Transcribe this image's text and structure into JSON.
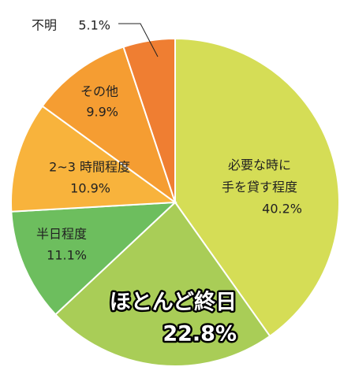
{
  "chart_data": {
    "type": "pie",
    "categories": [
      "必要な時に\n手を貸す程度",
      "ほとんど終日",
      "半日程度",
      "2~3 時間程度",
      "その他",
      "不明"
    ],
    "values": [
      40.2,
      22.8,
      11.1,
      10.9,
      9.9,
      5.1
    ],
    "value_labels": [
      "40.2%",
      "22.8%",
      "11.1%",
      "10.9%",
      "9.9%",
      "5.1%"
    ],
    "colors": [
      "#d5dd56",
      "#a9cd57",
      "#6dbe5e",
      "#f8b33c",
      "#f59d32",
      "#ef7e32"
    ]
  }
}
